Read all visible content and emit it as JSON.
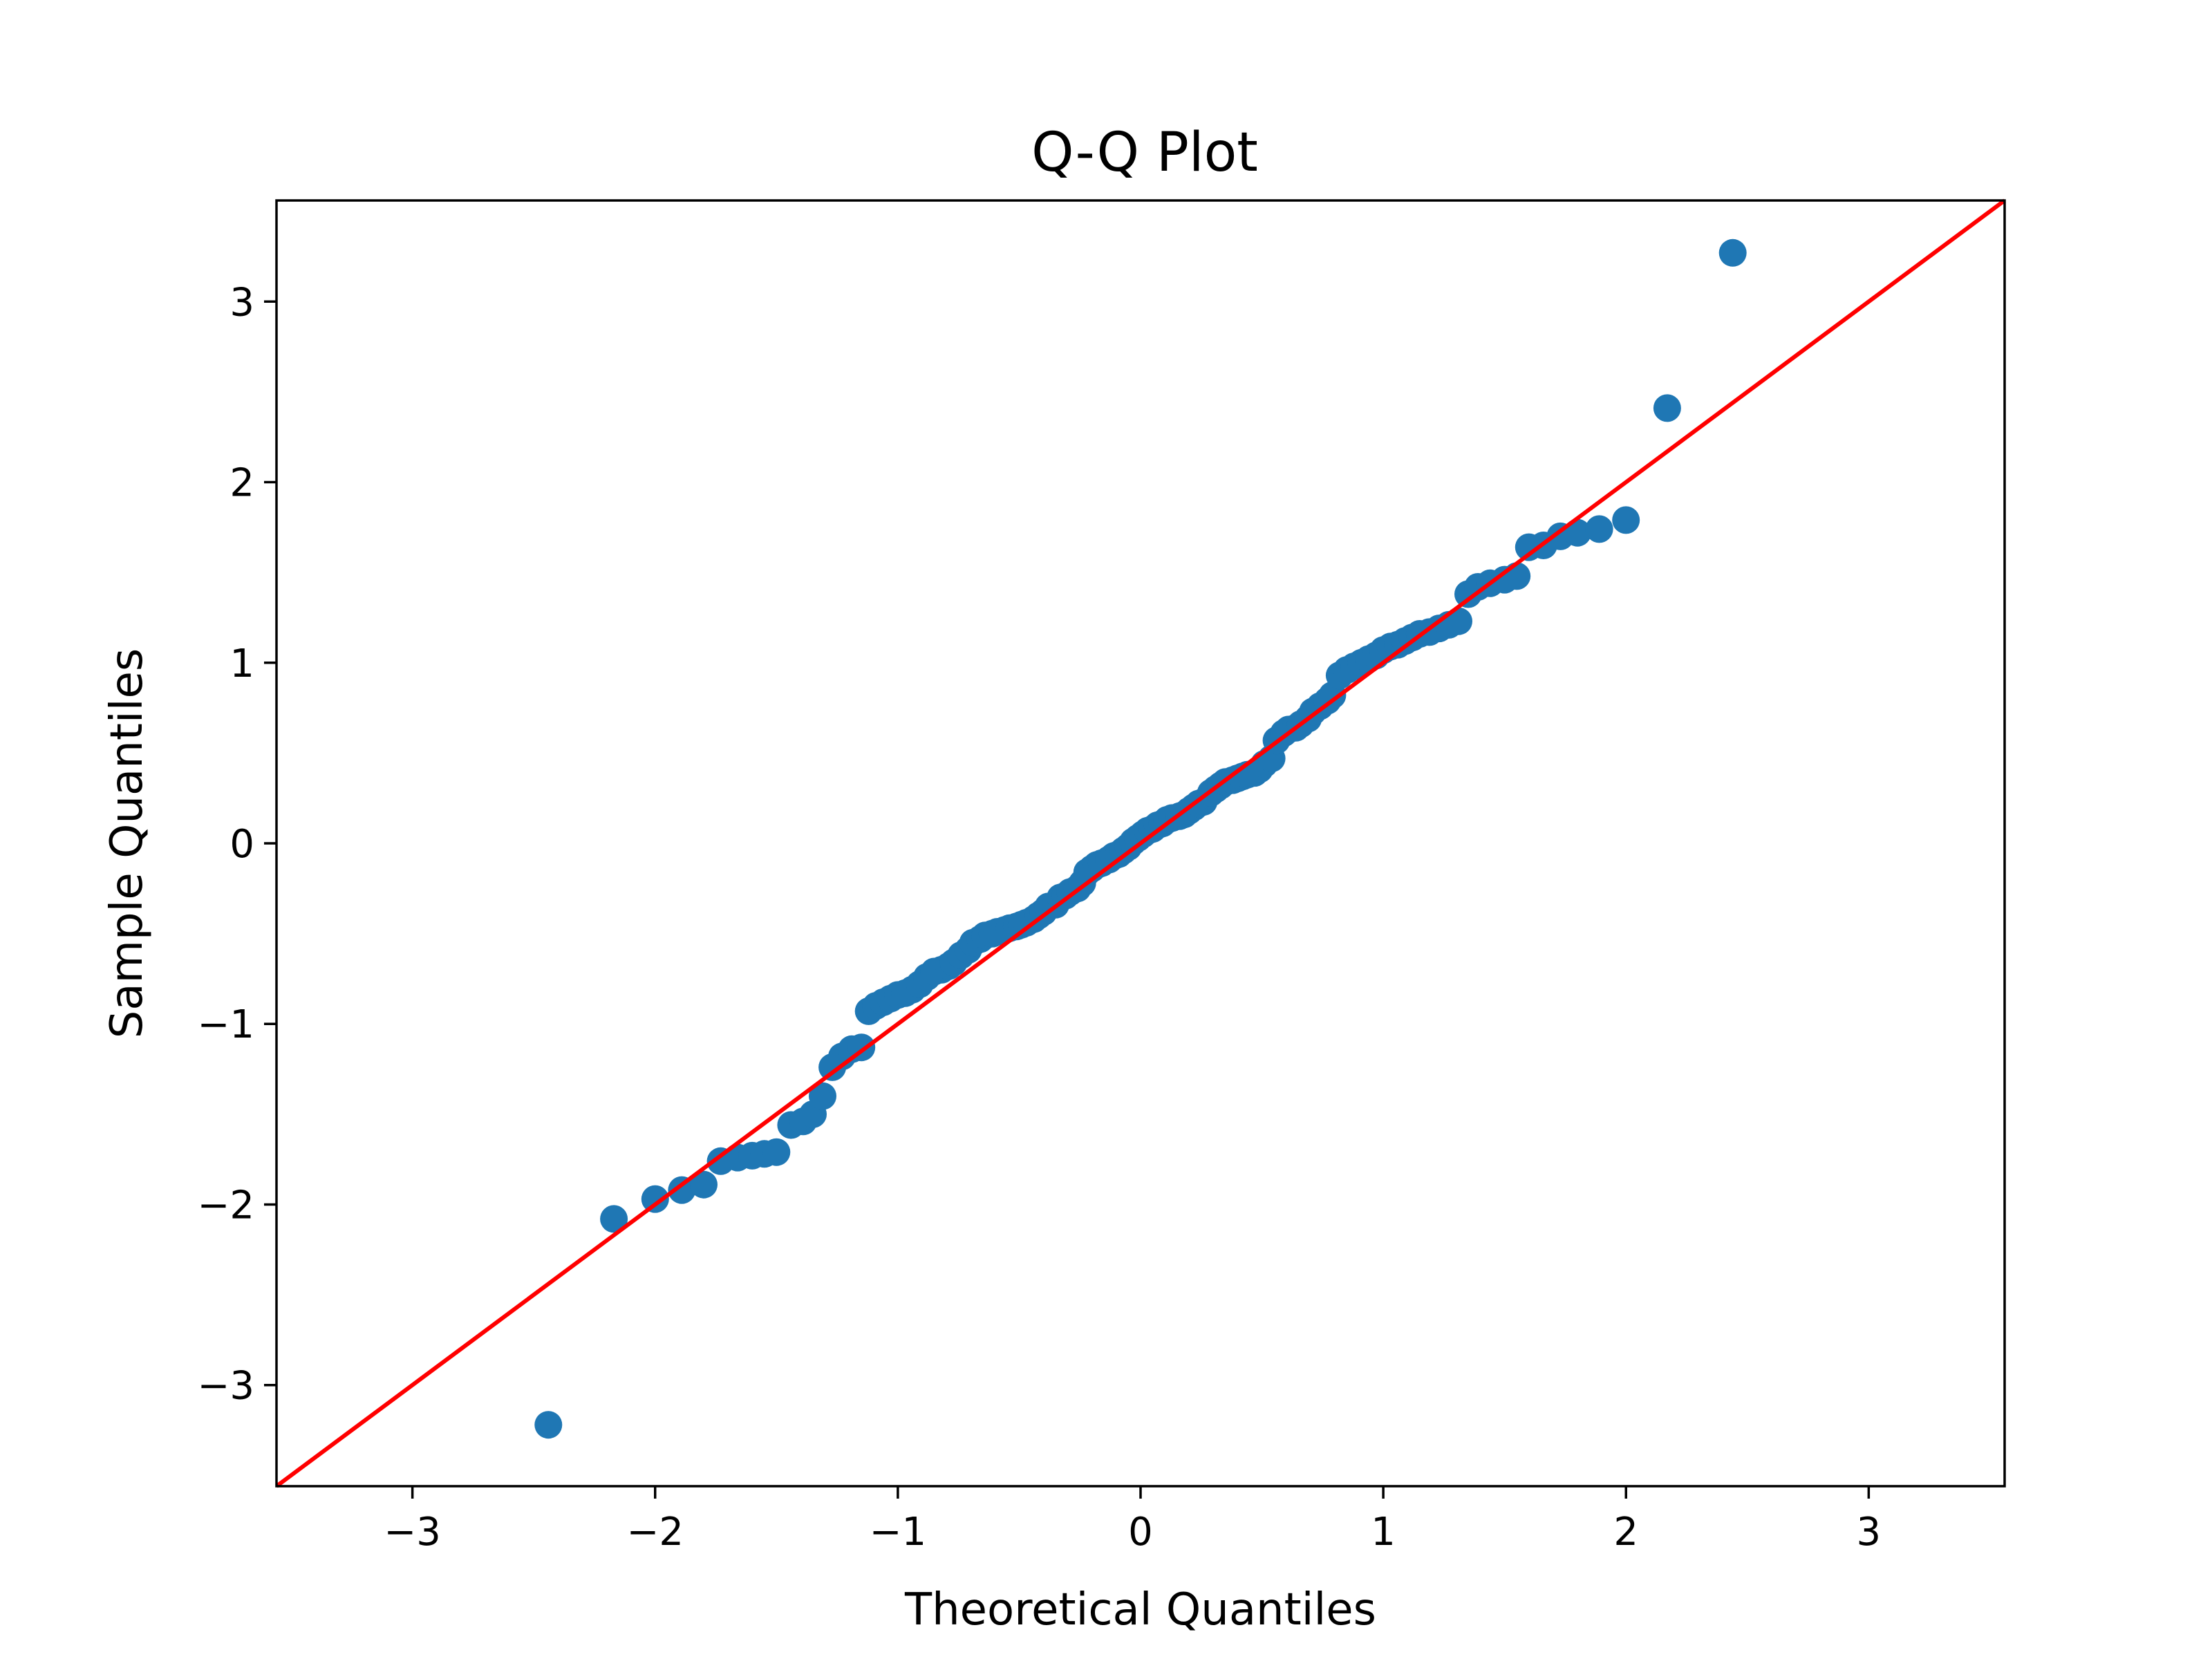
{
  "chart_data": {
    "type": "scatter",
    "title": "Q-Q Plot",
    "xlabel": "Theoretical Quantiles",
    "ylabel": "Sample Quantiles",
    "xlim": [
      -3.56,
      3.56
    ],
    "ylim": [
      -3.56,
      3.56
    ],
    "xticks": [
      -3,
      -2,
      -1,
      0,
      1,
      2,
      3
    ],
    "yticks": [
      -3,
      -2,
      -1,
      0,
      1,
      2,
      3
    ],
    "xtick_labels": [
      "−3",
      "−2",
      "−1",
      "0",
      "1",
      "2",
      "3"
    ],
    "ytick_labels": [
      "−3",
      "−2",
      "−1",
      "0",
      "1",
      "2",
      "3"
    ],
    "grid": false,
    "legend": "none",
    "colors": {
      "points": "#1f77b4",
      "line": "#ff0000",
      "frame": "#000000"
    },
    "series": [
      {
        "kind": "scatter",
        "x": [
          -2.44,
          -2.17,
          -2.0,
          -1.89,
          -1.8,
          -1.73,
          -1.66,
          -1.6,
          -1.55,
          -1.5,
          -1.44,
          -1.39,
          -1.35,
          -1.31,
          -1.27,
          -1.23,
          -1.19,
          -1.15,
          -1.12,
          -1.09,
          -1.06,
          -1.03,
          -1.0,
          -0.97,
          -0.94,
          -0.91,
          -0.88,
          -0.85,
          -0.82,
          -0.79,
          -0.77,
          -0.74,
          -0.71,
          -0.69,
          -0.66,
          -0.64,
          -0.61,
          -0.59,
          -0.56,
          -0.54,
          -0.51,
          -0.49,
          -0.47,
          -0.44,
          -0.42,
          -0.4,
          -0.38,
          -0.35,
          -0.33,
          -0.31,
          -0.29,
          -0.26,
          -0.24,
          -0.22,
          -0.2,
          -0.18,
          -0.16,
          -0.13,
          -0.11,
          -0.09,
          -0.07,
          -0.05,
          -0.03,
          -0.01,
          0.01,
          0.03,
          0.05,
          0.07,
          0.09,
          0.11,
          0.13,
          0.16,
          0.18,
          0.2,
          0.22,
          0.24,
          0.26,
          0.29,
          0.31,
          0.33,
          0.35,
          0.38,
          0.4,
          0.42,
          0.44,
          0.47,
          0.49,
          0.51,
          0.54,
          0.56,
          0.59,
          0.61,
          0.64,
          0.66,
          0.69,
          0.71,
          0.74,
          0.77,
          0.79,
          0.82,
          0.85,
          0.88,
          0.91,
          0.94,
          0.97,
          1.0,
          1.03,
          1.06,
          1.09,
          1.12,
          1.15,
          1.19,
          1.23,
          1.27,
          1.31,
          1.35,
          1.39,
          1.44,
          1.5,
          1.55,
          1.6,
          1.66,
          1.73,
          1.8,
          1.89,
          2.0,
          2.17,
          2.44
        ],
        "y": [
          -3.22,
          -2.08,
          -1.97,
          -1.92,
          -1.89,
          -1.76,
          -1.74,
          -1.73,
          -1.72,
          -1.71,
          -1.56,
          -1.54,
          -1.5,
          -1.4,
          -1.24,
          -1.18,
          -1.14,
          -1.13,
          -0.93,
          -0.9,
          -0.88,
          -0.86,
          -0.84,
          -0.83,
          -0.81,
          -0.78,
          -0.74,
          -0.71,
          -0.7,
          -0.68,
          -0.66,
          -0.62,
          -0.59,
          -0.55,
          -0.53,
          -0.51,
          -0.5,
          -0.49,
          -0.48,
          -0.47,
          -0.46,
          -0.45,
          -0.44,
          -0.42,
          -0.4,
          -0.38,
          -0.35,
          -0.34,
          -0.3,
          -0.29,
          -0.27,
          -0.25,
          -0.22,
          -0.16,
          -0.14,
          -0.12,
          -0.11,
          -0.09,
          -0.07,
          -0.06,
          -0.04,
          -0.02,
          0.01,
          0.03,
          0.05,
          0.07,
          0.08,
          0.1,
          0.11,
          0.13,
          0.14,
          0.15,
          0.16,
          0.18,
          0.2,
          0.22,
          0.23,
          0.28,
          0.3,
          0.32,
          0.34,
          0.35,
          0.36,
          0.37,
          0.38,
          0.39,
          0.41,
          0.44,
          0.47,
          0.57,
          0.61,
          0.63,
          0.64,
          0.66,
          0.69,
          0.73,
          0.76,
          0.79,
          0.82,
          0.93,
          0.96,
          0.98,
          1.0,
          1.02,
          1.04,
          1.07,
          1.09,
          1.1,
          1.12,
          1.14,
          1.16,
          1.17,
          1.19,
          1.21,
          1.23,
          1.38,
          1.42,
          1.44,
          1.46,
          1.48,
          1.64,
          1.65,
          1.7,
          1.72,
          1.74,
          1.79,
          2.41,
          3.27
        ]
      },
      {
        "kind": "line",
        "x": [
          -3.56,
          3.56
        ],
        "y": [
          -3.56,
          3.56
        ]
      }
    ]
  }
}
